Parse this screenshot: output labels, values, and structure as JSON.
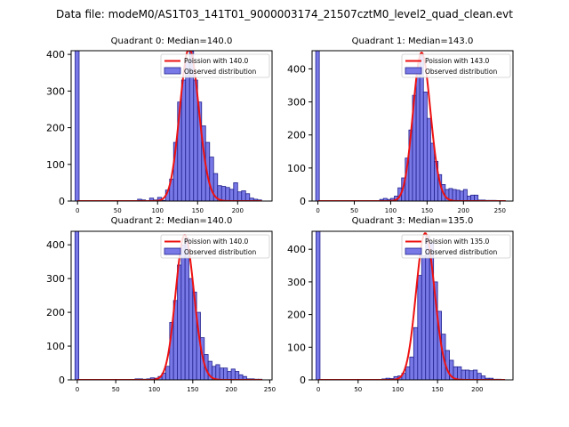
{
  "figure_title": "Data file: modeM0/AS1T03_141T01_9000003174_21507cztM0_level2_quad_clean.evt",
  "colors": {
    "hist_fill": "#7878e6",
    "hist_edge": "#23238f",
    "poisson_line": "#ee1111",
    "axis": "#000000",
    "legend_border": "#cccccc"
  },
  "chart_data": [
    {
      "type": "bar",
      "title": "Quadrant 0: Median=140.0",
      "median": 140.0,
      "xlim": [
        -8,
        243
      ],
      "ylim": [
        0,
        410
      ],
      "xticks": [
        0,
        50,
        100,
        150,
        200
      ],
      "yticks": [
        0,
        100,
        200,
        300,
        400
      ],
      "bin_width": 5,
      "zero_bin_count": 2500,
      "bins": [
        [
          75,
          5
        ],
        [
          80,
          3
        ],
        [
          85,
          0
        ],
        [
          90,
          8
        ],
        [
          95,
          3
        ],
        [
          100,
          10
        ],
        [
          105,
          2
        ],
        [
          110,
          30
        ],
        [
          115,
          60
        ],
        [
          120,
          160
        ],
        [
          125,
          270
        ],
        [
          130,
          330
        ],
        [
          135,
          380
        ],
        [
          140,
          408
        ],
        [
          145,
          330
        ],
        [
          150,
          270
        ],
        [
          155,
          205
        ],
        [
          160,
          160
        ],
        [
          165,
          120
        ],
        [
          170,
          75
        ],
        [
          175,
          42
        ],
        [
          180,
          40
        ],
        [
          185,
          37
        ],
        [
          190,
          32
        ],
        [
          195,
          50
        ],
        [
          200,
          25
        ],
        [
          205,
          28
        ],
        [
          210,
          20
        ],
        [
          215,
          8
        ],
        [
          220,
          5
        ],
        [
          225,
          3
        ]
      ],
      "poisson_x_range": [
        0,
        230
      ],
      "legend": [
        "Poission with 140.0",
        "Observed distribution"
      ]
    },
    {
      "type": "bar",
      "title": "Quadrant 1: Median=143.0",
      "median": 143.0,
      "xlim": [
        -8,
        268
      ],
      "ylim": [
        0,
        455
      ],
      "xticks": [
        0,
        50,
        100,
        150,
        200,
        250
      ],
      "yticks": [
        0,
        100,
        200,
        300,
        400
      ],
      "bin_width": 5,
      "zero_bin_count": 2500,
      "bins": [
        [
          85,
          5
        ],
        [
          90,
          8
        ],
        [
          95,
          5
        ],
        [
          100,
          8
        ],
        [
          105,
          15
        ],
        [
          110,
          40
        ],
        [
          115,
          70
        ],
        [
          120,
          130
        ],
        [
          125,
          215
        ],
        [
          130,
          320
        ],
        [
          135,
          390
        ],
        [
          140,
          440
        ],
        [
          145,
          330
        ],
        [
          150,
          250
        ],
        [
          155,
          175
        ],
        [
          160,
          120
        ],
        [
          165,
          80
        ],
        [
          170,
          50
        ],
        [
          175,
          35
        ],
        [
          180,
          38
        ],
        [
          185,
          35
        ],
        [
          190,
          33
        ],
        [
          195,
          30
        ],
        [
          200,
          35
        ],
        [
          205,
          15
        ],
        [
          210,
          18
        ],
        [
          215,
          18
        ],
        [
          220,
          3
        ],
        [
          225,
          3
        ],
        [
          230,
          2
        ],
        [
          235,
          2
        ],
        [
          240,
          2
        ],
        [
          245,
          1
        ],
        [
          250,
          1
        ]
      ],
      "poisson_x_range": [
        0,
        258
      ],
      "legend": [
        "Poission with 143.0",
        "Observed distribution"
      ]
    },
    {
      "type": "bar",
      "title": "Quadrant 2: Median=140.0",
      "median": 140.0,
      "xlim": [
        -8,
        253
      ],
      "ylim": [
        0,
        440
      ],
      "xticks": [
        0,
        50,
        100,
        150,
        200,
        250
      ],
      "yticks": [
        0,
        100,
        200,
        300,
        400
      ],
      "bin_width": 5,
      "zero_bin_count": 2500,
      "bins": [
        [
          75,
          3
        ],
        [
          80,
          3
        ],
        [
          85,
          2
        ],
        [
          90,
          3
        ],
        [
          95,
          6
        ],
        [
          100,
          5
        ],
        [
          105,
          10
        ],
        [
          110,
          20
        ],
        [
          115,
          40
        ],
        [
          120,
          170
        ],
        [
          125,
          235
        ],
        [
          130,
          340
        ],
        [
          135,
          400
        ],
        [
          140,
          420
        ],
        [
          145,
          300
        ],
        [
          150,
          260
        ],
        [
          155,
          200
        ],
        [
          160,
          125
        ],
        [
          165,
          75
        ],
        [
          170,
          55
        ],
        [
          175,
          40
        ],
        [
          180,
          45
        ],
        [
          185,
          35
        ],
        [
          190,
          35
        ],
        [
          195,
          25
        ],
        [
          200,
          32
        ],
        [
          205,
          25
        ],
        [
          210,
          15
        ],
        [
          215,
          10
        ],
        [
          220,
          3
        ],
        [
          225,
          3
        ],
        [
          230,
          2
        ],
        [
          235,
          2
        ]
      ],
      "poisson_x_range": [
        0,
        240
      ],
      "legend": [
        "Poission with 140.0",
        "Observed distribution"
      ]
    },
    {
      "type": "bar",
      "title": "Quadrant 3: Median=135.0",
      "median": 135.0,
      "xlim": [
        -8,
        245
      ],
      "ylim": [
        0,
        455
      ],
      "xticks": [
        0,
        50,
        100,
        150,
        200
      ],
      "yticks": [
        0,
        100,
        200,
        300,
        400
      ],
      "bin_width": 5,
      "zero_bin_count": 2500,
      "bins": [
        [
          80,
          3
        ],
        [
          85,
          5
        ],
        [
          90,
          4
        ],
        [
          95,
          10
        ],
        [
          100,
          12
        ],
        [
          105,
          20
        ],
        [
          110,
          40
        ],
        [
          115,
          70
        ],
        [
          120,
          160
        ],
        [
          125,
          320
        ],
        [
          130,
          380
        ],
        [
          135,
          440
        ],
        [
          140,
          420
        ],
        [
          145,
          300
        ],
        [
          150,
          210
        ],
        [
          155,
          140
        ],
        [
          160,
          90
        ],
        [
          165,
          60
        ],
        [
          170,
          40
        ],
        [
          175,
          40
        ],
        [
          180,
          30
        ],
        [
          185,
          30
        ],
        [
          190,
          28
        ],
        [
          195,
          30
        ],
        [
          200,
          20
        ],
        [
          205,
          12
        ],
        [
          210,
          5
        ],
        [
          215,
          5
        ],
        [
          220,
          2
        ],
        [
          225,
          2
        ]
      ],
      "poisson_x_range": [
        0,
        235
      ],
      "legend": [
        "Poission with 135.0",
        "Observed distribution"
      ]
    }
  ]
}
